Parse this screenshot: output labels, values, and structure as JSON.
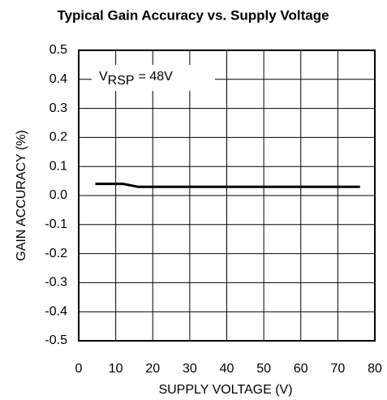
{
  "chart_data": {
    "type": "line",
    "title": "Typical Gain Accuracy vs. Supply Voltage",
    "xlabel": "SUPPLY VOLTAGE (V)",
    "ylabel": "GAIN ACCURACY (%)",
    "annotation": {
      "main": "V",
      "sub": "RSP",
      "rest": "= 48V"
    },
    "x": [
      4.5,
      12,
      16,
      76
    ],
    "series": [
      {
        "color": "#000000",
        "values": [
          0.04,
          0.04,
          0.03,
          0.03
        ]
      }
    ],
    "xlim": [
      0,
      80
    ],
    "xticks": [
      0,
      10,
      20,
      30,
      40,
      50,
      60,
      70,
      80
    ],
    "ylim": [
      -0.5,
      0.5
    ],
    "yticks": [
      -0.5,
      -0.4,
      -0.3,
      -0.2,
      -0.1,
      {
        "value": 0,
        "label": "0.0"
      },
      0.1,
      0.2,
      0.3,
      0.4,
      0.5
    ],
    "grid": true
  }
}
